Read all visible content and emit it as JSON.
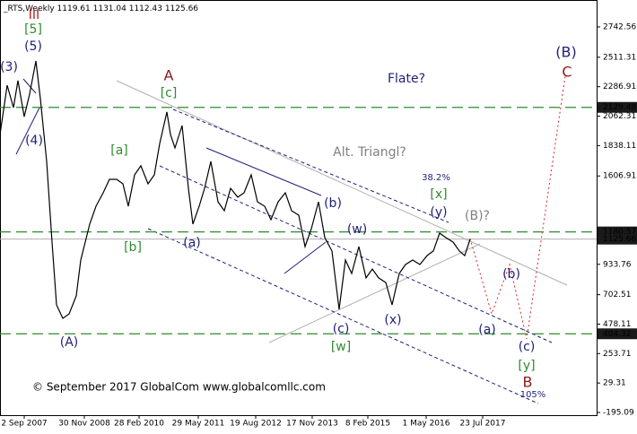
{
  "chart_data": {
    "type": "line",
    "title": "_RTS,Weekly",
    "ohlc": [
      1119.61,
      1131.04,
      1112.43,
      1125.66
    ],
    "series": [
      {
        "name": "RTS",
        "color": "#000000",
        "x": [
          0,
          8,
          15,
          20,
          27,
          33,
          40,
          45,
          52,
          58,
          63,
          70,
          77,
          85,
          90,
          95,
          100,
          107,
          115,
          122,
          130,
          137,
          143,
          150,
          157,
          165,
          172,
          178,
          186,
          190,
          195,
          203,
          210,
          215,
          222,
          228,
          235,
          243,
          250,
          257,
          265,
          272,
          280,
          287,
          295,
          302,
          310,
          318,
          325,
          333,
          340,
          347,
          355,
          362,
          370,
          378,
          385,
          392,
          400,
          408,
          415,
          422,
          430,
          437,
          445,
          452,
          460,
          468,
          476,
          483,
          490,
          497,
          505,
          512,
          518,
          524
        ],
        "values": [
          1923,
          2298,
          2128,
          2333,
          2059,
          2230,
          2483,
          2196,
          1718,
          1103,
          625,
          522,
          556,
          693,
          966,
          1103,
          1240,
          1376,
          1479,
          1581,
          1581,
          1547,
          1376,
          1615,
          1684,
          1547,
          1615,
          1854,
          2094,
          1923,
          1820,
          1991,
          1513,
          1240,
          1376,
          1513,
          1718,
          1410,
          1342,
          1513,
          1445,
          1479,
          1615,
          1410,
          1376,
          1274,
          1410,
          1479,
          1342,
          1308,
          1069,
          1205,
          1410,
          1137,
          1035,
          590,
          966,
          864,
          1069,
          830,
          898,
          830,
          795,
          625,
          864,
          932,
          966,
          932,
          1000,
          1035,
          1171,
          1137,
          1103,
          1035,
          1000,
          1125.66
        ]
      }
    ],
    "xlim": [
      0,
      665
    ],
    "xticks": [
      {
        "value": 27,
        "label": "2 Sep 2007"
      },
      {
        "value": 94,
        "label": "30 Nov 2008"
      },
      {
        "value": 155,
        "label": "28 Feb 2010"
      },
      {
        "value": 221,
        "label": "29 May 2011"
      },
      {
        "value": 285,
        "label": "19 Aug 2012"
      },
      {
        "value": 348,
        "label": "17 Nov 2013"
      },
      {
        "value": 410,
        "label": "8 Feb 2015"
      },
      {
        "value": 475,
        "label": "1 May 2016"
      },
      {
        "value": 538,
        "label": "23 Jul 2017"
      }
    ],
    "ylim": [
      -215.6,
      2947.5
    ],
    "yticks": [
      2742.56,
      2511.31,
      2286.91,
      2062.31,
      1838.11,
      1606.91,
      933.76,
      702.51,
      478.11,
      253.71,
      29.31,
      -195.09
    ],
    "levels": [
      2129.49,
      1180.57,
      404.32
    ],
    "level_color": "#2e8b2e",
    "annotations": [
      {
        "text": "III",
        "color": "#b22222"
      },
      {
        "text": "[5]",
        "color": "#2e8b2e"
      },
      {
        "text": "(5)",
        "color": "#1f1f7a"
      },
      {
        "text": "(3)",
        "color": "#1f1f7a"
      },
      {
        "text": "(4)",
        "color": "#1f1f7a"
      },
      {
        "text": "A",
        "color": "#8b1a1a"
      },
      {
        "text": "[c]",
        "color": "#2e8b2e"
      },
      {
        "text": "[a]",
        "color": "#2e8b2e"
      },
      {
        "text": "[b]",
        "color": "#2e8b2e"
      },
      {
        "text": "(a)",
        "color": "#1f1f7a"
      },
      {
        "text": "Flate?",
        "color": "#1f1f7a"
      },
      {
        "text": "Alt. Triangl?",
        "color": "#808080"
      },
      {
        "text": "38.2%",
        "color": "#1f1f7a"
      },
      {
        "text": "[x]",
        "color": "#2e8b2e"
      },
      {
        "text": "(y)",
        "color": "#1f1f7a"
      },
      {
        "text": "(B)?",
        "color": "#808080"
      },
      {
        "text": "(b)",
        "color": "#1f1f7a"
      },
      {
        "text": "(w)",
        "color": "#1f1f7a"
      },
      {
        "text": "(c)",
        "color": "#1f1f7a"
      },
      {
        "text": "[w]",
        "color": "#2e8b2e"
      },
      {
        "text": "(x)",
        "color": "#1f1f7a"
      },
      {
        "text": "(a)",
        "color": "#1f1f7a"
      },
      {
        "text": "(b)",
        "color": "#1f1f7a"
      },
      {
        "text": "(c)",
        "color": "#1f1f7a"
      },
      {
        "text": "[y]",
        "color": "#2e8b2e"
      },
      {
        "text": "B",
        "color": "#8b1a1a"
      },
      {
        "text": "105%",
        "color": "#1f1f7a"
      },
      {
        "text": "(A)",
        "color": "#1f1f7a"
      },
      {
        "text": "(B)",
        "color": "#1f1f7a"
      },
      {
        "text": "C",
        "color": "#8b1a1a"
      },
      {
        "text": "© September 2017 GlobalCom www.globalcomllc.com",
        "color": "#000000"
      }
    ]
  }
}
